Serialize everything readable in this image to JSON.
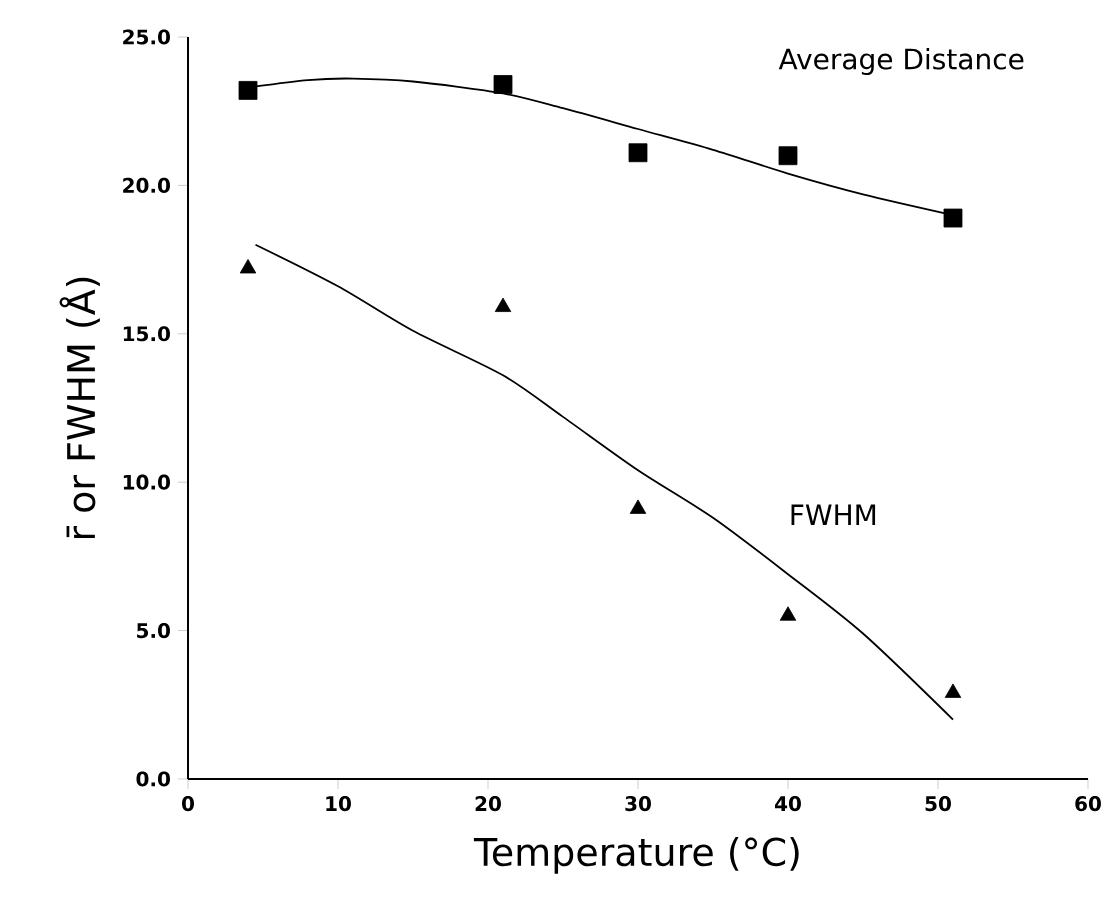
{
  "chart_data": {
    "type": "scatter",
    "xlabel": "Temperature (°C)",
    "ylabel": "r̄ or FWHM (Å)",
    "xlim": [
      0,
      60
    ],
    "ylim": [
      0,
      25
    ],
    "xticks": [
      0,
      10,
      20,
      30,
      40,
      50,
      60
    ],
    "yticks": [
      {
        "value": 0,
        "label": "0.0"
      },
      {
        "value": 5,
        "label": "5.0"
      },
      {
        "value": 10,
        "label": "10.0"
      },
      {
        "value": 15,
        "label": "15.0"
      },
      {
        "value": 20,
        "label": "20.0"
      },
      {
        "value": 25,
        "label": "25.0"
      }
    ],
    "annotations": [
      "Average Distance",
      "FWHM"
    ],
    "series": [
      {
        "marker": "square",
        "color": "#000000",
        "x": [
          4,
          21,
          30,
          40,
          51
        ],
        "values": [
          23.2,
          23.4,
          21.1,
          21.0,
          18.9
        ]
      },
      {
        "marker": "triangle",
        "color": "#000000",
        "x": [
          4,
          21,
          30,
          40,
          51
        ],
        "values": [
          17.2,
          15.9,
          9.1,
          5.5,
          2.9
        ]
      },
      {
        "type": "line",
        "marker": "none",
        "color": "#000000",
        "x": [
          4,
          8,
          11,
          15,
          21,
          25,
          30,
          35,
          40,
          45,
          51
        ],
        "values": [
          23.3,
          23.55,
          23.6,
          23.5,
          23.1,
          22.6,
          21.9,
          21.2,
          20.4,
          19.7,
          19.0
        ]
      },
      {
        "type": "line",
        "marker": "none",
        "color": "#000000",
        "x": [
          4.5,
          10,
          15,
          21,
          25,
          30,
          35,
          40,
          45,
          51
        ],
        "values": [
          18.0,
          16.6,
          15.1,
          13.6,
          12.2,
          10.4,
          8.8,
          6.9,
          4.9,
          2.0
        ]
      }
    ]
  }
}
